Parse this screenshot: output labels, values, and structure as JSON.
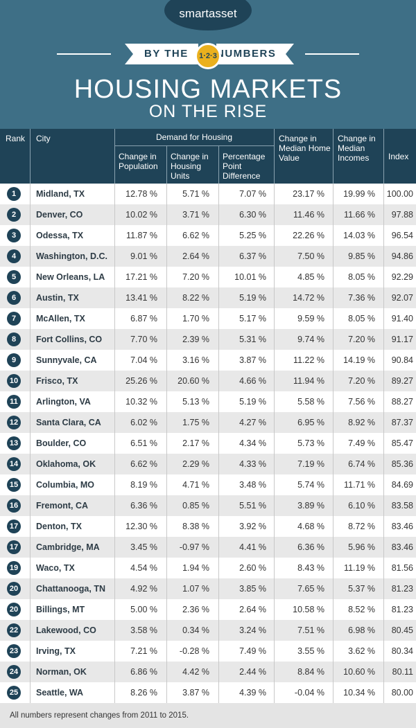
{
  "brand": {
    "logo": "smartasset",
    "byline_left": "BY THE",
    "byline_badge": "1·2·3",
    "byline_right": "NUMBERS"
  },
  "title": {
    "line1": "HOUSING MARKETS",
    "line2": "ON THE RISE"
  },
  "header": {
    "rank": "Rank",
    "city": "City",
    "group": "Demand for Housing",
    "pop": "Change in Population",
    "units": "Change in Housing Units",
    "pp": "Percentage Point Difference",
    "home": "Change in Median Home Value",
    "income": "Change in Median Incomes",
    "index": "Index"
  },
  "rows": [
    {
      "rank": "1",
      "city": "Midland, TX",
      "pop": "12.78 %",
      "units": "5.71 %",
      "pp": "7.07 %",
      "home": "23.17 %",
      "income": "19.99 %",
      "index": "100.00"
    },
    {
      "rank": "2",
      "city": "Denver, CO",
      "pop": "10.02 %",
      "units": "3.71 %",
      "pp": "6.30 %",
      "home": "11.46 %",
      "income": "11.66 %",
      "index": "97.88"
    },
    {
      "rank": "3",
      "city": "Odessa, TX",
      "pop": "11.87 %",
      "units": "6.62 %",
      "pp": "5.25 %",
      "home": "22.26 %",
      "income": "14.03 %",
      "index": "96.54"
    },
    {
      "rank": "4",
      "city": "Washington, D.C.",
      "pop": "9.01 %",
      "units": "2.64 %",
      "pp": "6.37 %",
      "home": "7.50 %",
      "income": "9.85 %",
      "index": "94.86"
    },
    {
      "rank": "5",
      "city": "New Orleans, LA",
      "pop": "17.21 %",
      "units": "7.20 %",
      "pp": "10.01 %",
      "home": "4.85 %",
      "income": "8.05 %",
      "index": "92.29"
    },
    {
      "rank": "6",
      "city": "Austin, TX",
      "pop": "13.41 %",
      "units": "8.22 %",
      "pp": "5.19 %",
      "home": "14.72 %",
      "income": "7.36 %",
      "index": "92.07"
    },
    {
      "rank": "7",
      "city": "McAllen, TX",
      "pop": "6.87 %",
      "units": "1.70 %",
      "pp": "5.17 %",
      "home": "9.59 %",
      "income": "8.05 %",
      "index": "91.40"
    },
    {
      "rank": "8",
      "city": "Fort Collins, CO",
      "pop": "7.70 %",
      "units": "2.39 %",
      "pp": "5.31 %",
      "home": "9.74 %",
      "income": "7.20 %",
      "index": "91.17"
    },
    {
      "rank": "9",
      "city": "Sunnyvale, CA",
      "pop": "7.04 %",
      "units": "3.16 %",
      "pp": "3.87 %",
      "home": "11.22 %",
      "income": "14.19 %",
      "index": "90.84"
    },
    {
      "rank": "10",
      "city": "Frisco, TX",
      "pop": "25.26 %",
      "units": "20.60 %",
      "pp": "4.66 %",
      "home": "11.94 %",
      "income": "7.20 %",
      "index": "89.27"
    },
    {
      "rank": "11",
      "city": "Arlington, VA",
      "pop": "10.32 %",
      "units": "5.13 %",
      "pp": "5.19 %",
      "home": "5.58 %",
      "income": "7.56 %",
      "index": "88.27"
    },
    {
      "rank": "12",
      "city": "Santa Clara, CA",
      "pop": "6.02 %",
      "units": "1.75 %",
      "pp": "4.27 %",
      "home": "6.95 %",
      "income": "8.92 %",
      "index": "87.37"
    },
    {
      "rank": "13",
      "city": "Boulder, CO",
      "pop": "6.51 %",
      "units": "2.17 %",
      "pp": "4.34 %",
      "home": "5.73 %",
      "income": "7.49 %",
      "index": "85.47"
    },
    {
      "rank": "14",
      "city": "Oklahoma, OK",
      "pop": "6.62 %",
      "units": "2.29 %",
      "pp": "4.33 %",
      "home": "7.19 %",
      "income": "6.74 %",
      "index": "85.36"
    },
    {
      "rank": "15",
      "city": "Columbia, MO",
      "pop": "8.19 %",
      "units": "4.71 %",
      "pp": "3.48 %",
      "home": "5.74 %",
      "income": "11.71 %",
      "index": "84.69"
    },
    {
      "rank": "16",
      "city": "Fremont, CA",
      "pop": "6.36 %",
      "units": "0.85 %",
      "pp": "5.51 %",
      "home": "3.89 %",
      "income": "6.10 %",
      "index": "83.58"
    },
    {
      "rank": "17",
      "city": "Denton, TX",
      "pop": "12.30 %",
      "units": "8.38 %",
      "pp": "3.92 %",
      "home": "4.68 %",
      "income": "8.72 %",
      "index": "83.46"
    },
    {
      "rank": "17",
      "city": "Cambridge, MA",
      "pop": "3.45 %",
      "units": "-0.97 %",
      "pp": "4.41 %",
      "home": "6.36 %",
      "income": "5.96 %",
      "index": "83.46"
    },
    {
      "rank": "19",
      "city": "Waco, TX",
      "pop": "4.54 %",
      "units": "1.94 %",
      "pp": "2.60 %",
      "home": "8.43 %",
      "income": "11.19 %",
      "index": "81.56"
    },
    {
      "rank": "20",
      "city": "Chattanooga, TN",
      "pop": "4.92 %",
      "units": "1.07 %",
      "pp": "3.85 %",
      "home": "7.65 %",
      "income": "5.37 %",
      "index": "81.23"
    },
    {
      "rank": "20",
      "city": "Billings, MT",
      "pop": "5.00 %",
      "units": "2.36 %",
      "pp": "2.64 %",
      "home": "10.58 %",
      "income": "8.52 %",
      "index": "81.23"
    },
    {
      "rank": "22",
      "city": "Lakewood, CO",
      "pop": "3.58 %",
      "units": "0.34 %",
      "pp": "3.24 %",
      "home": "7.51 %",
      "income": "6.98 %",
      "index": "80.45"
    },
    {
      "rank": "23",
      "city": "Irving, TX",
      "pop": "7.21 %",
      "units": "-0.28 %",
      "pp": "7.49 %",
      "home": "3.55 %",
      "income": "3.62 %",
      "index": "80.34"
    },
    {
      "rank": "24",
      "city": "Norman, OK",
      "pop": "6.86 %",
      "units": "4.42 %",
      "pp": "2.44 %",
      "home": "8.84 %",
      "income": "10.60 %",
      "index": "80.11"
    },
    {
      "rank": "25",
      "city": "Seattle, WA",
      "pop": "8.26 %",
      "units": "3.87 %",
      "pp": "4.39 %",
      "home": "-0.04 %",
      "income": "10.34 %",
      "index": "80.00"
    }
  ],
  "footer": "All numbers represent changes from 2011 to 2015."
}
